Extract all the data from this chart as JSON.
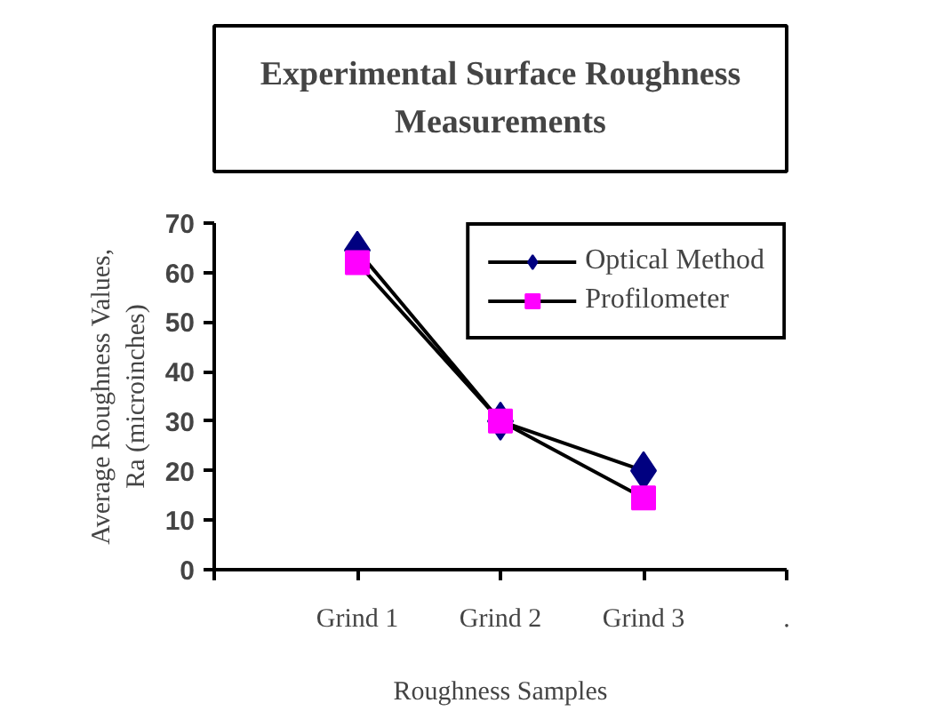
{
  "chart_data": {
    "type": "line",
    "title": "Experimental Surface Roughness\nMeasurements",
    "xlabel": "Roughness Samples",
    "ylabel": "Average Roughness Values,\nRa (microinches)",
    "categories": [
      null,
      "Grind 1",
      "Grind 2",
      "Grind 3",
      "."
    ],
    "series": [
      {
        "name": "Optical Method",
        "color": "#000080",
        "marker": "diamond",
        "values": [
          null,
          64.5,
          30,
          20,
          null
        ]
      },
      {
        "name": "Profilometer",
        "color": "#ff00ff",
        "marker": "square",
        "values": [
          null,
          62,
          30,
          14.5,
          null
        ]
      }
    ],
    "ylim": [
      0,
      70
    ],
    "yticks": [
      0,
      10,
      20,
      30,
      40,
      50,
      60,
      70
    ],
    "grid": false,
    "legend": "top right"
  }
}
